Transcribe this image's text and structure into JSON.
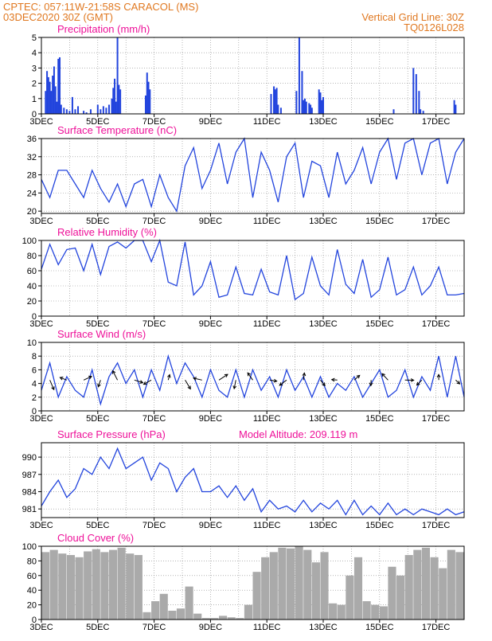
{
  "header": {
    "line1": "CPTEC:   057:11W-21:58S   CARACOL (MS)",
    "line2": "03DEC2020 30Z (GMT)",
    "grid_note": "Vertical Grid Line: 30Z",
    "run_id": "TQ0126L028"
  },
  "colors": {
    "header": "#e07820",
    "panel_title": "#ee1199",
    "series": "#2244dd",
    "cloud": "#aaaaaa",
    "frame": "#000000",
    "grid": "#888888"
  },
  "x_ticks": [
    "3DEC",
    "5DEC",
    "7DEC",
    "9DEC",
    "11DEC",
    "13DEC",
    "15DEC",
    "17DEC"
  ],
  "chart_data": [
    {
      "type": "bar",
      "title": "Precipitation (mm/h)",
      "x": [
        3.15,
        3.2,
        3.25,
        3.3,
        3.35,
        3.4,
        3.45,
        3.5,
        3.55,
        3.6,
        3.65,
        3.7,
        3.8,
        3.9,
        4.0,
        4.1,
        4.2,
        4.3,
        4.5,
        4.6,
        4.75,
        5.0,
        5.1,
        5.2,
        5.3,
        5.4,
        5.5,
        5.55,
        5.6,
        5.65,
        5.7,
        5.75,
        5.8,
        6.7,
        6.75,
        6.8,
        6.85,
        11.15,
        11.25,
        11.3,
        11.35,
        11.4,
        11.5,
        12.05,
        12.15,
        12.25,
        12.3,
        12.35,
        12.4,
        12.5,
        12.55,
        12.6,
        12.85,
        12.9,
        12.95,
        13.0,
        15.5,
        16.2,
        16.3,
        16.4,
        16.45,
        16.55,
        17.65,
        17.7
      ],
      "values": [
        1.5,
        2.8,
        2.4,
        2.1,
        1.5,
        2.5,
        3.1,
        1.8,
        0.8,
        3.6,
        3.7,
        0.6,
        0.4,
        0.3,
        0.2,
        1.1,
        0.3,
        0.5,
        0.2,
        0.1,
        0.3,
        0.6,
        0.3,
        0.5,
        0.4,
        0.6,
        1.0,
        1.7,
        2.3,
        0.8,
        5.0,
        1.9,
        1.6,
        1.2,
        2.7,
        2.1,
        1.6,
        1.3,
        1.8,
        1.6,
        1.7,
        0.6,
        0.4,
        1.5,
        5.0,
        2.8,
        0.9,
        1.0,
        0.8,
        0.7,
        0.6,
        0.4,
        1.6,
        1.4,
        0.9,
        1.1,
        0.3,
        3.0,
        2.6,
        1.5,
        0.3,
        0.2,
        0.9,
        0.6
      ],
      "ylim": [
        0,
        5
      ],
      "yticks": [
        0,
        1,
        2,
        3,
        4,
        5
      ]
    },
    {
      "type": "line",
      "title": "Surface Temperature (nC)",
      "x": [
        3,
        3.3,
        3.6,
        3.9,
        4.2,
        4.5,
        4.8,
        5.1,
        5.4,
        5.7,
        6.0,
        6.3,
        6.6,
        6.9,
        7.2,
        7.5,
        7.8,
        8.1,
        8.4,
        8.7,
        9.0,
        9.3,
        9.6,
        9.9,
        10.2,
        10.5,
        10.8,
        11.1,
        11.4,
        11.7,
        12.0,
        12.3,
        12.6,
        12.9,
        13.2,
        13.5,
        13.8,
        14.1,
        14.4,
        14.7,
        15.0,
        15.3,
        15.6,
        15.9,
        16.2,
        16.5,
        16.8,
        17.1,
        17.4,
        17.7,
        18.0
      ],
      "values": [
        27,
        23,
        29,
        29,
        26,
        23,
        29,
        25,
        22,
        26,
        21,
        26,
        27,
        21,
        28,
        23,
        20,
        30,
        34,
        25,
        29,
        35,
        26,
        33,
        36,
        23,
        33,
        29,
        22,
        32,
        35,
        23,
        31,
        30,
        23,
        33,
        26,
        29,
        34,
        26,
        33,
        36,
        27,
        35,
        36,
        28,
        35,
        36,
        26,
        33,
        36
      ],
      "ylim": [
        19.5,
        36
      ],
      "yticks": [
        20,
        24,
        28,
        32,
        36
      ]
    },
    {
      "type": "line",
      "title": "Relative Humidity (%)",
      "x": [
        3,
        3.3,
        3.6,
        3.9,
        4.2,
        4.5,
        4.8,
        5.1,
        5.4,
        5.7,
        6.0,
        6.3,
        6.6,
        6.9,
        7.2,
        7.5,
        7.8,
        8.1,
        8.4,
        8.7,
        9.0,
        9.3,
        9.6,
        9.9,
        10.2,
        10.5,
        10.8,
        11.1,
        11.4,
        11.7,
        12.0,
        12.3,
        12.6,
        12.9,
        13.2,
        13.5,
        13.8,
        14.1,
        14.4,
        14.7,
        15.0,
        15.3,
        15.6,
        15.9,
        16.2,
        16.5,
        16.8,
        17.1,
        17.4,
        17.7,
        18.0
      ],
      "values": [
        62,
        95,
        68,
        88,
        90,
        60,
        95,
        55,
        92,
        98,
        90,
        100,
        100,
        72,
        100,
        45,
        40,
        98,
        28,
        40,
        72,
        25,
        28,
        65,
        30,
        28,
        62,
        32,
        28,
        80,
        22,
        30,
        78,
        40,
        28,
        88,
        42,
        30,
        75,
        25,
        35,
        78,
        28,
        35,
        65,
        28,
        40,
        65,
        28,
        28,
        30
      ],
      "ylim": [
        0,
        100
      ],
      "yticks": [
        0,
        20,
        40,
        60,
        80,
        100
      ]
    },
    {
      "type": "line",
      "title": "Surface Wind (m/s)",
      "x": [
        3,
        3.3,
        3.6,
        3.9,
        4.2,
        4.5,
        4.8,
        5.1,
        5.4,
        5.7,
        6.0,
        6.3,
        6.6,
        6.9,
        7.2,
        7.5,
        7.8,
        8.1,
        8.4,
        8.7,
        9.0,
        9.3,
        9.6,
        9.9,
        10.2,
        10.5,
        10.8,
        11.1,
        11.4,
        11.7,
        12.0,
        12.3,
        12.6,
        12.9,
        13.2,
        13.5,
        13.8,
        14.1,
        14.4,
        14.7,
        15.0,
        15.3,
        15.6,
        15.9,
        16.2,
        16.5,
        16.8,
        17.1,
        17.4,
        17.7,
        18.0
      ],
      "values": [
        3,
        7,
        2,
        5,
        3,
        2,
        6,
        1,
        5,
        7,
        4,
        6,
        2,
        6,
        3,
        8,
        4,
        7,
        5,
        2,
        6,
        3,
        2,
        6,
        2,
        6,
        3,
        5,
        2,
        6,
        3,
        5,
        2,
        5,
        2,
        4,
        3,
        5,
        2,
        4,
        6,
        2,
        3,
        6,
        2,
        5,
        3,
        8,
        2,
        8,
        2
      ],
      "ylim": [
        0,
        10
      ],
      "yticks": [
        0,
        2,
        4,
        6,
        8,
        10
      ]
    },
    {
      "type": "line",
      "title": "Surface Pressure (hPa)",
      "subtitle": "Model Altitude: 209.119 m",
      "x": [
        3,
        3.3,
        3.6,
        3.9,
        4.2,
        4.5,
        4.8,
        5.1,
        5.4,
        5.7,
        6.0,
        6.3,
        6.6,
        6.9,
        7.2,
        7.5,
        7.8,
        8.1,
        8.4,
        8.7,
        9.0,
        9.3,
        9.6,
        9.9,
        10.2,
        10.5,
        10.8,
        11.1,
        11.4,
        11.7,
        12.0,
        12.3,
        12.6,
        12.9,
        13.2,
        13.5,
        13.8,
        14.1,
        14.4,
        14.7,
        15.0,
        15.3,
        15.6,
        15.9,
        16.2,
        16.5,
        16.8,
        17.1,
        17.4,
        17.7,
        18.0
      ],
      "values": [
        981.5,
        984,
        986,
        983,
        984.5,
        988,
        987,
        990,
        988,
        991.5,
        988,
        989,
        990,
        986,
        989,
        988,
        984,
        986.5,
        988,
        984,
        984,
        985,
        983,
        985,
        982.5,
        984.5,
        980.5,
        982.5,
        981,
        981.5,
        980.5,
        982.5,
        980.5,
        982,
        981,
        982.5,
        980,
        982.5,
        980,
        981.5,
        980,
        982,
        980,
        981,
        980,
        981,
        980.5,
        980,
        981,
        980,
        980.5
      ],
      "ylim": [
        979.5,
        992.5
      ],
      "yticks": [
        981,
        984,
        987,
        990
      ]
    },
    {
      "type": "area",
      "title": "Cloud Cover (%)",
      "x": [
        3,
        3.3,
        3.6,
        3.9,
        4.2,
        4.5,
        4.8,
        5.1,
        5.4,
        5.7,
        6.0,
        6.3,
        6.6,
        6.9,
        7.2,
        7.5,
        7.8,
        8.1,
        8.4,
        8.7,
        9.0,
        9.3,
        9.6,
        9.9,
        10.2,
        10.5,
        10.8,
        11.1,
        11.4,
        11.7,
        12.0,
        12.3,
        12.6,
        12.9,
        13.2,
        13.5,
        13.8,
        14.1,
        14.4,
        14.7,
        15.0,
        15.3,
        15.6,
        15.9,
        16.2,
        16.5,
        16.8,
        17.1,
        17.4,
        17.7,
        18.0
      ],
      "values": [
        92,
        95,
        90,
        88,
        85,
        93,
        96,
        92,
        95,
        98,
        90,
        88,
        10,
        25,
        35,
        12,
        15,
        45,
        8,
        2,
        2,
        5,
        3,
        2,
        20,
        65,
        85,
        92,
        98,
        97,
        100,
        95,
        78,
        92,
        22,
        20,
        60,
        85,
        25,
        20,
        18,
        72,
        60,
        88,
        95,
        98,
        85,
        70,
        95,
        92,
        90
      ],
      "ylim": [
        0,
        100
      ],
      "yticks": [
        0,
        20,
        40,
        60,
        80,
        100
      ]
    }
  ]
}
